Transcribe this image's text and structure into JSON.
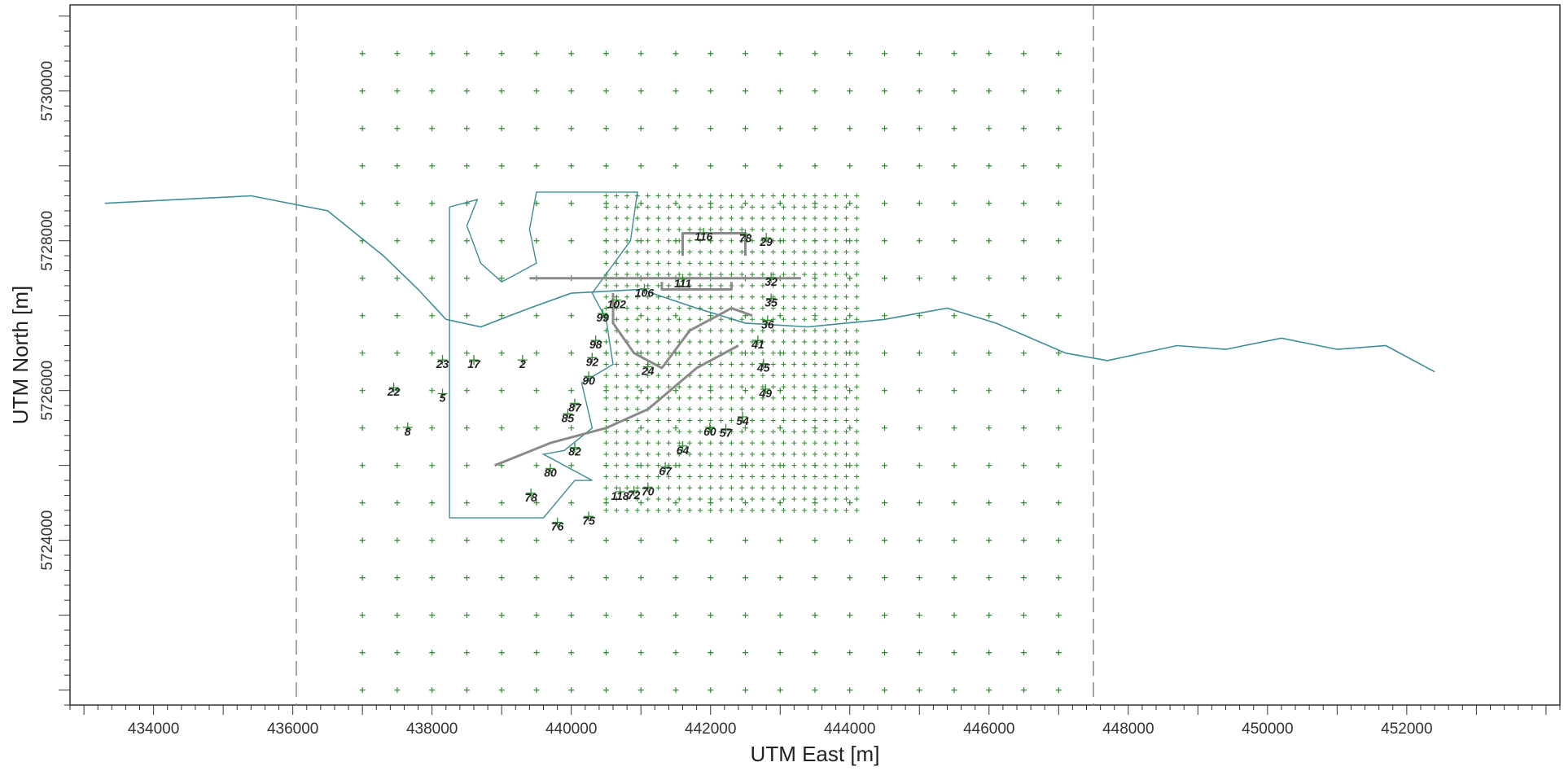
{
  "map": {
    "x_axis": {
      "title": "UTM East [m]",
      "range": [
        432800,
        454200
      ],
      "major_ticks": [
        434000,
        436000,
        438000,
        440000,
        442000,
        444000,
        446000,
        448000,
        450000,
        452000
      ],
      "tick_labels": [
        "434000",
        "436000",
        "438000",
        "440000",
        "442000",
        "444000",
        "446000",
        "448000",
        "450000",
        "452000"
      ]
    },
    "y_axis": {
      "title": "UTM North [m]",
      "range": [
        5721800,
        5731150
      ],
      "major_ticks": [
        5724000,
        5726000,
        5728000,
        5730000
      ],
      "tick_labels": [
        "5724000",
        "5726000",
        "5728000",
        "5730000"
      ]
    },
    "boundary_lines_x": [
      436050,
      447500
    ],
    "coarse_grid": {
      "x_start": 437000,
      "x_end": 447000,
      "y_start": 5722000,
      "y_end": 5730800,
      "spacing": 500
    },
    "fine_grid": {
      "x_start": 440500,
      "x_end": 444200,
      "y_start": 5724400,
      "y_end": 5728650,
      "spacing": 150
    },
    "colors": {
      "receptor": "#2e8b2e",
      "river": "#3f8d95",
      "coastline": "#3f8d95",
      "road": "#8a8a8a",
      "boundary": "#888888",
      "label": "#222222"
    },
    "river_points": [
      [
        433300,
        5728500
      ],
      [
        435400,
        5728600
      ],
      [
        436500,
        5728400
      ],
      [
        437300,
        5727800
      ],
      [
        437800,
        5727350
      ],
      [
        438200,
        5726950
      ],
      [
        438700,
        5726850
      ],
      [
        439400,
        5727100
      ],
      [
        440000,
        5727300
      ],
      [
        441000,
        5727350
      ],
      [
        441800,
        5727100
      ],
      [
        442500,
        5726900
      ],
      [
        443400,
        5726850
      ],
      [
        444500,
        5726950
      ],
      [
        445400,
        5727100
      ],
      [
        446100,
        5726900
      ],
      [
        447100,
        5726500
      ],
      [
        447700,
        5726400
      ],
      [
        448700,
        5726600
      ],
      [
        449400,
        5726550
      ],
      [
        450200,
        5726700
      ],
      [
        451000,
        5726550
      ],
      [
        451700,
        5726600
      ],
      [
        452400,
        5726250
      ]
    ],
    "coast_points": [
      [
        438250,
        5728450
      ],
      [
        438250,
        5724300
      ],
      [
        439600,
        5724300
      ],
      [
        440050,
        5724800
      ],
      [
        440300,
        5724800
      ],
      [
        439600,
        5725150
      ],
      [
        439900,
        5725200
      ],
      [
        440300,
        5725500
      ],
      [
        440150,
        5726100
      ],
      [
        440600,
        5726350
      ],
      [
        440500,
        5726950
      ],
      [
        440300,
        5727300
      ],
      [
        440850,
        5728000
      ],
      [
        440950,
        5728650
      ],
      [
        439500,
        5728650
      ],
      [
        439400,
        5728150
      ],
      [
        439500,
        5727700
      ],
      [
        439000,
        5727450
      ],
      [
        438700,
        5727700
      ],
      [
        438500,
        5728200
      ],
      [
        438650,
        5728550
      ],
      [
        438250,
        5728450
      ]
    ],
    "roads": [
      [
        [
          439400,
          5727500
        ],
        [
          441500,
          5727500
        ],
        [
          443300,
          5727500
        ]
      ],
      [
        [
          440600,
          5727300
        ],
        [
          440600,
          5726900
        ],
        [
          440900,
          5726500
        ],
        [
          441300,
          5726300
        ],
        [
          441700,
          5726800
        ],
        [
          442300,
          5727100
        ],
        [
          442600,
          5727000
        ]
      ],
      [
        [
          438900,
          5725000
        ],
        [
          439700,
          5725300
        ],
        [
          440500,
          5725500
        ],
        [
          441100,
          5725750
        ],
        [
          441800,
          5726300
        ],
        [
          442400,
          5726600
        ]
      ],
      [
        [
          441300,
          5727450
        ],
        [
          441300,
          5727350
        ],
        [
          442300,
          5727350
        ],
        [
          442300,
          5727450
        ]
      ],
      [
        [
          441600,
          5727800
        ],
        [
          441600,
          5728100
        ],
        [
          442500,
          5728100
        ],
        [
          442500,
          5727800
        ]
      ]
    ],
    "receptor_labels": [
      {
        "text": "116",
        "x": 441900,
        "y": 5728000
      },
      {
        "text": "78",
        "x": 442500,
        "y": 5727980
      },
      {
        "text": "29",
        "x": 442800,
        "y": 5727930
      },
      {
        "text": "111",
        "x": 441600,
        "y": 5727380
      },
      {
        "text": "32",
        "x": 442870,
        "y": 5727400
      },
      {
        "text": "106",
        "x": 441050,
        "y": 5727250
      },
      {
        "text": "102",
        "x": 440650,
        "y": 5727100
      },
      {
        "text": "35",
        "x": 442870,
        "y": 5727120
      },
      {
        "text": "99",
        "x": 440450,
        "y": 5726920
      },
      {
        "text": "36",
        "x": 442820,
        "y": 5726830
      },
      {
        "text": "98",
        "x": 440350,
        "y": 5726560
      },
      {
        "text": "41",
        "x": 442680,
        "y": 5726560
      },
      {
        "text": "17",
        "x": 438600,
        "y": 5726300
      },
      {
        "text": "23",
        "x": 438150,
        "y": 5726300
      },
      {
        "text": "2",
        "x": 439300,
        "y": 5726300
      },
      {
        "text": "92",
        "x": 440300,
        "y": 5726330
      },
      {
        "text": "24",
        "x": 441100,
        "y": 5726210
      },
      {
        "text": "45",
        "x": 442760,
        "y": 5726250
      },
      {
        "text": "90",
        "x": 440250,
        "y": 5726080
      },
      {
        "text": "22",
        "x": 437450,
        "y": 5725930
      },
      {
        "text": "5",
        "x": 438150,
        "y": 5725850
      },
      {
        "text": "49",
        "x": 442790,
        "y": 5725910
      },
      {
        "text": "87",
        "x": 440050,
        "y": 5725720
      },
      {
        "text": "85",
        "x": 439950,
        "y": 5725580
      },
      {
        "text": "54",
        "x": 442460,
        "y": 5725540
      },
      {
        "text": "60",
        "x": 441990,
        "y": 5725400
      },
      {
        "text": "57",
        "x": 442220,
        "y": 5725380
      },
      {
        "text": "8",
        "x": 437650,
        "y": 5725400
      },
      {
        "text": "64",
        "x": 441600,
        "y": 5725150
      },
      {
        "text": "82",
        "x": 440050,
        "y": 5725130
      },
      {
        "text": "80",
        "x": 439700,
        "y": 5724850
      },
      {
        "text": "67",
        "x": 441350,
        "y": 5724870
      },
      {
        "text": "70",
        "x": 441100,
        "y": 5724600
      },
      {
        "text": "118",
        "x": 440700,
        "y": 5724540
      },
      {
        "text": "72",
        "x": 440900,
        "y": 5724550
      },
      {
        "text": "78",
        "x": 439420,
        "y": 5724520
      },
      {
        "text": "75",
        "x": 440250,
        "y": 5724210
      },
      {
        "text": "76",
        "x": 439800,
        "y": 5724130
      }
    ]
  }
}
